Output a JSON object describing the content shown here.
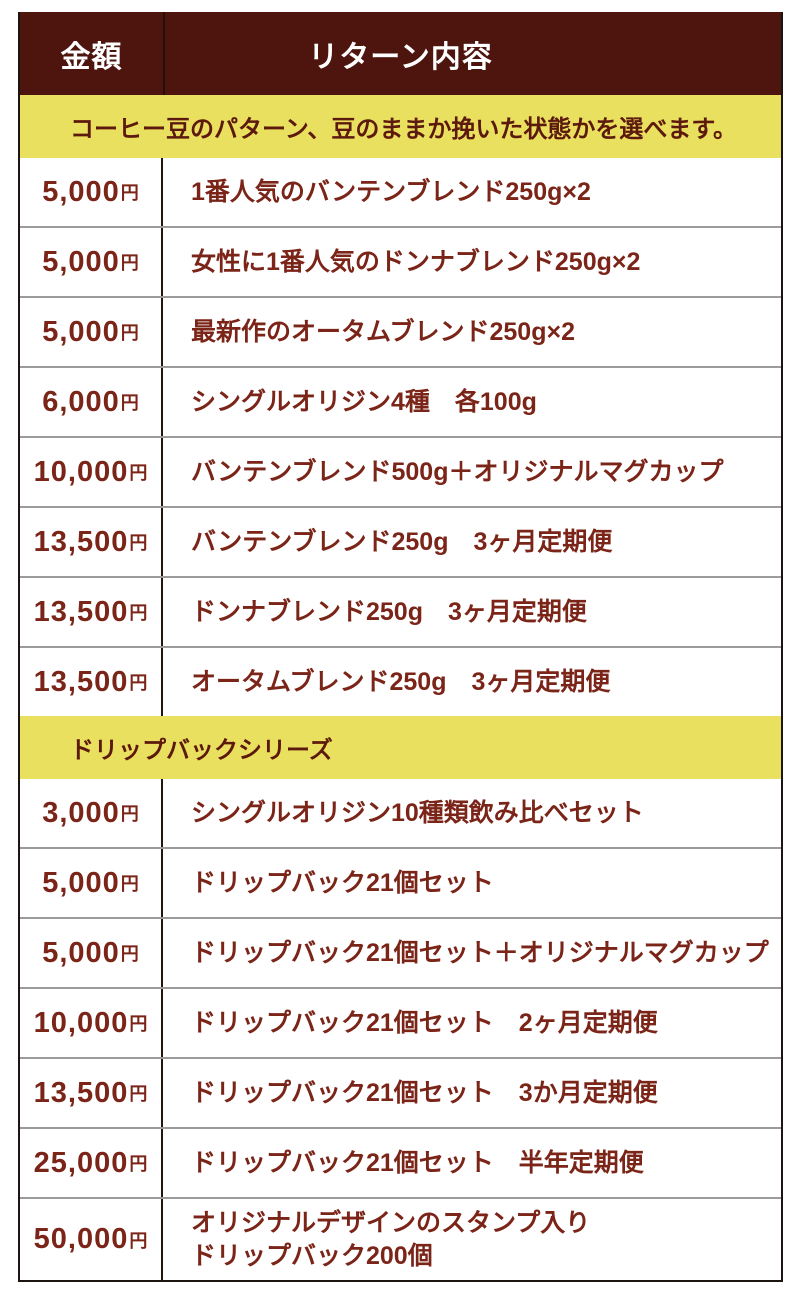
{
  "table": {
    "header": {
      "amount_label": "金額",
      "return_label": "リターン内容"
    },
    "sections": [
      {
        "title": "コーヒー豆のパターン、豆のままか挽いた状態かを選べます。",
        "rows": [
          {
            "amount": "5,000",
            "currency": "円",
            "description": "1番人気のバンテンブレンド250g×2"
          },
          {
            "amount": "5,000",
            "currency": "円",
            "description": "女性に1番人気のドンナブレンド250g×2"
          },
          {
            "amount": "5,000",
            "currency": "円",
            "description": "最新作のオータムブレンド250g×2"
          },
          {
            "amount": "6,000",
            "currency": "円",
            "description": "シングルオリジン4種　各100g"
          },
          {
            "amount": "10,000",
            "currency": "円",
            "description": "バンテンブレンド500g＋オリジナルマグカップ"
          },
          {
            "amount": "13,500",
            "currency": "円",
            "description": "バンテンブレンド250g　3ヶ月定期便"
          },
          {
            "amount": "13,500",
            "currency": "円",
            "description": "ドンナブレンド250g　3ヶ月定期便"
          },
          {
            "amount": "13,500",
            "currency": "円",
            "description": "オータムブレンド250g　3ヶ月定期便"
          }
        ]
      },
      {
        "title": "ドリップバックシリーズ",
        "rows": [
          {
            "amount": "3,000",
            "currency": "円",
            "description": "シングルオリジン10種類飲み比べセット"
          },
          {
            "amount": "5,000",
            "currency": "円",
            "description": "ドリップバック21個セット"
          },
          {
            "amount": "5,000",
            "currency": "円",
            "description": "ドリップバック21個セット＋オリジナルマグカップ"
          },
          {
            "amount": "10,000",
            "currency": "円",
            "description": "ドリップバック21個セット　2ヶ月定期便"
          },
          {
            "amount": "13,500",
            "currency": "円",
            "description": "ドリップバック21個セット　3か月定期便"
          },
          {
            "amount": "25,000",
            "currency": "円",
            "description": "ドリップバック21個セット　半年定期便"
          },
          {
            "amount": "50,000",
            "currency": "円",
            "description": "オリジナルデザインのスタンプ入り\nドリップバック200個"
          }
        ]
      }
    ]
  },
  "colors": {
    "header_background": "#4e150e",
    "header_text": "#ffffff",
    "section_background": "#eae05f",
    "section_text": "#5c190d",
    "body_text": "#7b2418",
    "row_divider": "#9b9b9b",
    "outer_border": "#1b1410",
    "page_background": "#ffffff"
  }
}
